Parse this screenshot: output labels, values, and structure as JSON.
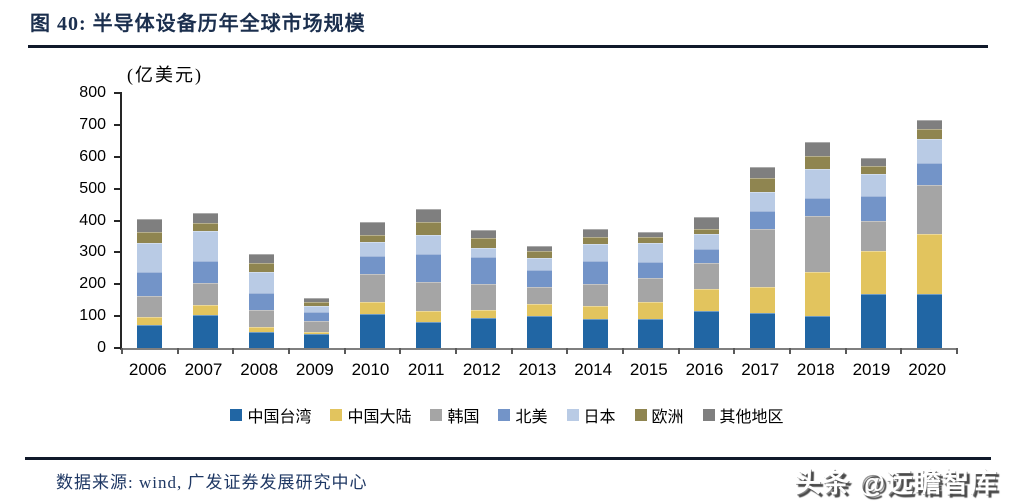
{
  "header": {
    "title": "图 40:  半导体设备历年全球市场规模"
  },
  "chart_data": {
    "type": "bar",
    "stacked": true,
    "title": "半导体设备历年全球市场规模",
    "unit_label": "(亿美元)",
    "ylabel": "亿美元",
    "xlabel": "",
    "ylim": [
      0,
      800
    ],
    "ytick_step": 100,
    "yticks": [
      "800",
      "700",
      "600",
      "500",
      "400",
      "300",
      "200",
      "100",
      "0"
    ],
    "grid": false,
    "legend_position": "bottom",
    "categories": [
      "2006",
      "2007",
      "2008",
      "2009",
      "2010",
      "2011",
      "2012",
      "2013",
      "2014",
      "2015",
      "2016",
      "2017",
      "2018",
      "2019",
      "2020"
    ],
    "series": [
      {
        "name": "中国台湾",
        "color": "#2166A4",
        "values": [
          72,
          103,
          50,
          43,
          107,
          82,
          94,
          100,
          90,
          92,
          117,
          111,
          100,
          168,
          168
        ]
      },
      {
        "name": "中国大陆",
        "color": "#E2C45E",
        "values": [
          25,
          32,
          15,
          7,
          38,
          34,
          26,
          37,
          42,
          53,
          68,
          81,
          137,
          136,
          190
        ]
      },
      {
        "name": "韩国",
        "color": "#A5A5A5",
        "values": [
          66,
          70,
          55,
          35,
          87,
          92,
          81,
          55,
          68,
          74,
          81,
          180,
          176,
          94,
          153
        ]
      },
      {
        "name": "北美",
        "color": "#7394C8",
        "values": [
          74,
          67,
          52,
          28,
          58,
          88,
          84,
          53,
          74,
          51,
          44,
          59,
          57,
          79,
          70
        ]
      },
      {
        "name": "日本",
        "color": "#B9CBE5",
        "values": [
          93,
          96,
          68,
          20,
          43,
          60,
          28,
          36,
          52,
          58,
          48,
          59,
          91,
          68,
          74
        ]
      },
      {
        "name": "欧洲",
        "color": "#8F8550",
        "values": [
          35,
          24,
          28,
          10,
          23,
          40,
          32,
          24,
          23,
          19,
          17,
          42,
          42,
          26,
          31
        ]
      },
      {
        "name": "其他地区",
        "color": "#7F7F7F",
        "values": [
          40,
          33,
          27,
          15,
          38,
          39,
          24,
          15,
          24,
          17,
          37,
          35,
          42,
          26,
          29
        ]
      }
    ]
  },
  "footer": {
    "source": "数据来源:  wind, 广发证券发展研究中心",
    "watermark": "头条 @远瞻智库"
  }
}
